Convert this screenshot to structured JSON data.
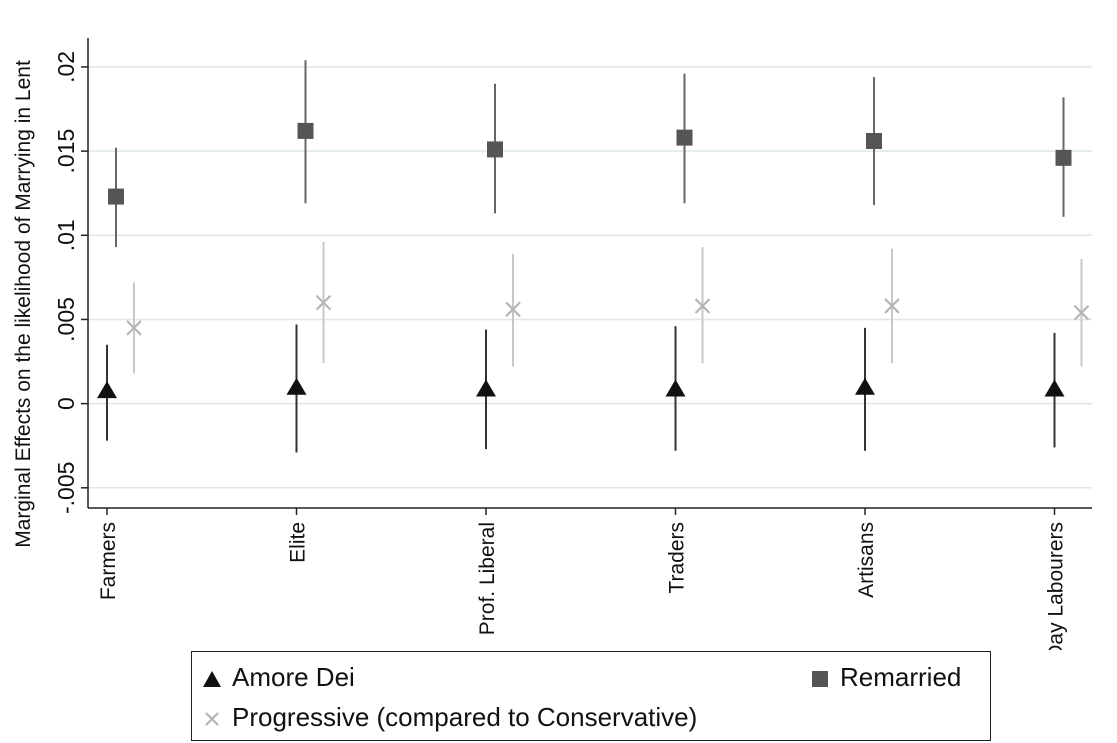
{
  "chart_data": {
    "type": "scatter",
    "ylabel": "Marginal Effects on the likelihood of Marrying in Lent",
    "xlabel": "",
    "categories": [
      "Farmers",
      "Elite",
      "Prof. Liberal",
      "Traders",
      "Artisans",
      "Day Labourers"
    ],
    "yticks": [
      -0.005,
      0,
      0.005,
      0.01,
      0.015,
      0.02
    ],
    "ytick_labels": [
      "-.005",
      "0",
      ".005",
      ".01",
      ".015",
      ".02"
    ],
    "ylim": [
      -0.0062,
      0.0216
    ],
    "grid": true,
    "legend_position": "bottom",
    "series": [
      {
        "name": "Amore Dei",
        "marker": "triangle",
        "color": "#111111",
        "values": [
          0.0008,
          0.001,
          0.0009,
          0.0009,
          0.001,
          0.0009
        ],
        "ci_low": [
          -0.0022,
          -0.0029,
          -0.0027,
          -0.0028,
          -0.0028,
          -0.0026
        ],
        "ci_high": [
          0.0035,
          0.0047,
          0.0044,
          0.0046,
          0.0045,
          0.0042
        ]
      },
      {
        "name": "Remarried",
        "marker": "square",
        "color": "#555555",
        "values": [
          0.0123,
          0.0162,
          0.0151,
          0.0158,
          0.0156,
          0.0146
        ],
        "ci_low": [
          0.0093,
          0.0119,
          0.0113,
          0.0119,
          0.0118,
          0.0111
        ],
        "ci_high": [
          0.0152,
          0.0204,
          0.019,
          0.0196,
          0.0194,
          0.0182
        ]
      },
      {
        "name": "Progressive (compared to Conservative)",
        "marker": "x",
        "color": "#b5b5b5",
        "values": [
          0.0045,
          0.006,
          0.0056,
          0.0058,
          0.0058,
          0.0054
        ],
        "ci_low": [
          0.0018,
          0.0024,
          0.0022,
          0.0024,
          0.0024,
          0.0022
        ],
        "ci_high": [
          0.0072,
          0.0096,
          0.0089,
          0.0093,
          0.0092,
          0.0086
        ]
      }
    ]
  }
}
